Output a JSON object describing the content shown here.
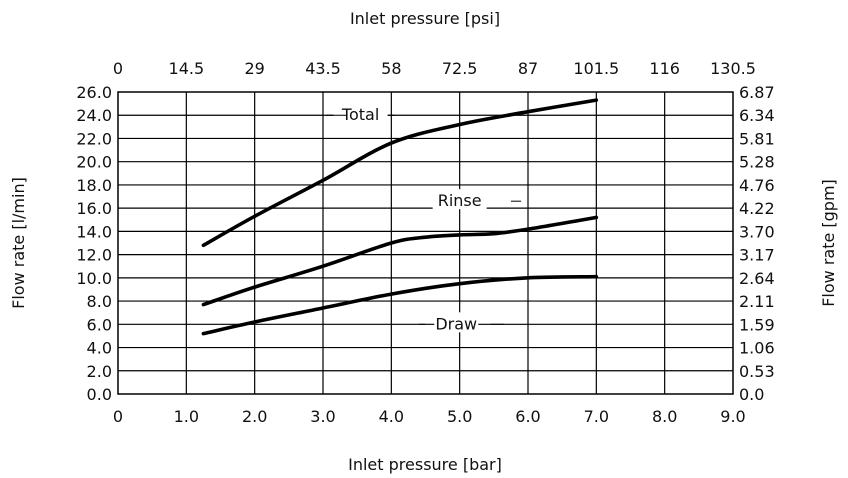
{
  "chart_data": {
    "type": "line",
    "title": "",
    "xlabel_bottom": "Inlet pressure [bar]",
    "xlabel_top": "Inlet pressure [psi]",
    "ylabel_left": "Flow rate [l/min]",
    "ylabel_right": "Flow rate [gpm]",
    "xlim": [
      0,
      9
    ],
    "ylim": [
      0,
      26
    ],
    "grid": true,
    "x_ticks_bottom": [
      "0",
      "1.0",
      "2.0",
      "3.0",
      "4.0",
      "5.0",
      "6.0",
      "7.0",
      "8.0",
      "9.0"
    ],
    "x_ticks_top": [
      "0",
      "14.5",
      "29",
      "43.5",
      "58",
      "72.5",
      "87",
      "101.5",
      "116",
      "130.5"
    ],
    "y_ticks_left": [
      "0.0",
      "2.0",
      "4.0",
      "6.0",
      "8.0",
      "10.0",
      "12.0",
      "14.0",
      "16.0",
      "18.0",
      "20.0",
      "22.0",
      "24.0",
      "26.0"
    ],
    "y_ticks_right": [
      "0.0",
      "0.53",
      "1.06",
      "1.59",
      "2.11",
      "2.64",
      "3.17",
      "3.70",
      "4.22",
      "4.76",
      "5.28",
      "5.81",
      "6.34",
      "6.87"
    ],
    "series": [
      {
        "name": "Total",
        "x": [
          1.25,
          2.0,
          3.0,
          4.0,
          5.0,
          6.0,
          7.0
        ],
        "y": [
          12.8,
          15.3,
          18.4,
          21.6,
          23.2,
          24.3,
          25.3
        ]
      },
      {
        "name": "Rinse",
        "x": [
          1.25,
          2.0,
          3.0,
          4.0,
          4.5,
          5.0,
          5.5,
          6.0,
          7.0
        ],
        "y": [
          7.7,
          9.2,
          11.0,
          13.0,
          13.5,
          13.7,
          13.8,
          14.2,
          15.2
        ]
      },
      {
        "name": "Draw",
        "x": [
          1.25,
          2.0,
          3.0,
          4.0,
          5.0,
          6.0,
          7.0
        ],
        "y": [
          5.2,
          6.2,
          7.4,
          8.6,
          9.5,
          10.0,
          10.1
        ]
      }
    ]
  }
}
